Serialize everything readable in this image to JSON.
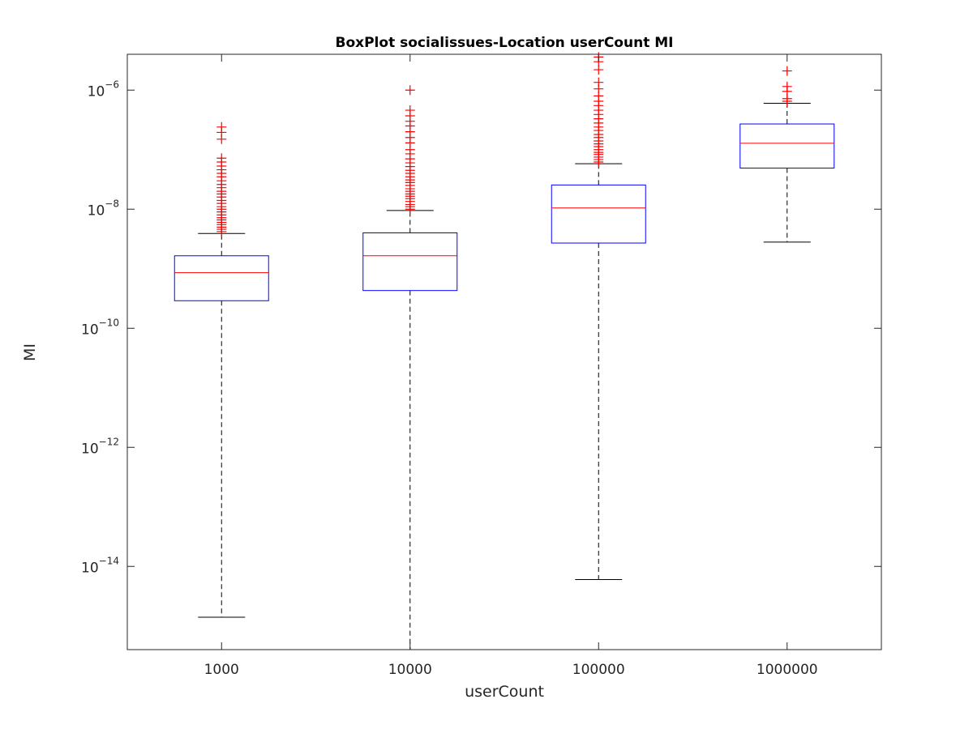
{
  "chart_data": {
    "type": "box",
    "title": "BoxPlot socialissues-Location userCount MI",
    "xlabel": "userCount",
    "ylabel": "MI",
    "yscale": "log",
    "ylim": [
      4e-16,
      4e-06
    ],
    "yticks": [
      {
        "value": 1e-14,
        "base": "10",
        "exp": "−14"
      },
      {
        "value": 1e-12,
        "base": "10",
        "exp": "−12"
      },
      {
        "value": 1e-10,
        "base": "10",
        "exp": "−10"
      },
      {
        "value": 1e-08,
        "base": "10",
        "exp": "−8"
      },
      {
        "value": 1e-06,
        "base": "10",
        "exp": "−6"
      }
    ],
    "grid": false,
    "categories": [
      "1000",
      "10000",
      "100000",
      "1000000"
    ],
    "boxes": [
      {
        "category": "1000",
        "whisker_low": 1.4e-15,
        "q1": 2.9e-10,
        "median": 8.6e-10,
        "q3": 1.65e-09,
        "whisker_high": 3.9e-09,
        "outliers": [
          4.2e-09,
          4.6e-09,
          5e-09,
          5.5e-09,
          6e-09,
          6.6e-09,
          7.2e-09,
          8e-09,
          9e-09,
          1e-08,
          1.1e-08,
          1.25e-08,
          1.4e-08,
          1.6e-08,
          1.8e-08,
          2e-08,
          2.3e-08,
          2.6e-08,
          3e-08,
          3.5e-08,
          4e-08,
          4.6e-08,
          5.3e-08,
          6.2e-08,
          7.2e-08,
          1.5e-07,
          1.95e-07,
          2.4e-07
        ]
      },
      {
        "category": "10000",
        "whisker_low": 4e-16,
        "q1": 4.3e-10,
        "median": 1.65e-09,
        "q3": 4e-09,
        "whisker_high": 9.5e-09,
        "outliers": [
          1e-08,
          1.1e-08,
          1.2e-08,
          1.35e-08,
          1.5e-08,
          1.65e-08,
          1.8e-08,
          2e-08,
          2.2e-08,
          2.5e-08,
          2.8e-08,
          3.1e-08,
          3.5e-08,
          4e-08,
          4.5e-08,
          5.2e-08,
          6e-08,
          7e-08,
          8.5e-08,
          1e-07,
          1.3e-07,
          1.6e-07,
          2e-07,
          2.5e-07,
          3e-07,
          3.7e-07,
          4.6e-07,
          1e-06
        ]
      },
      {
        "category": "100000",
        "whisker_low": 6e-15,
        "q1": 2.7e-09,
        "median": 1.05e-08,
        "q3": 2.55e-08,
        "whisker_high": 5.8e-08,
        "outliers": [
          6.2e-08,
          6.8e-08,
          7.5e-08,
          8.3e-08,
          9e-08,
          1e-07,
          1.12e-07,
          1.25e-07,
          1.4e-07,
          1.6e-07,
          1.8e-07,
          2.1e-07,
          2.4e-07,
          2.8e-07,
          3.3e-07,
          3.9e-07,
          4.6e-07,
          5.5e-07,
          6.5e-07,
          8e-07,
          1.05e-06,
          1.35e-06,
          2.2e-06,
          3e-06,
          3.6e-06
        ]
      },
      {
        "category": "1000000",
        "whisker_low": 2.8e-09,
        "q1": 4.9e-08,
        "median": 1.28e-07,
        "q3": 2.7e-07,
        "whisker_high": 6e-07,
        "outliers": [
          6.5e-07,
          7.2e-07,
          9.5e-07,
          1.15e-06,
          2.1e-06
        ]
      }
    ]
  }
}
